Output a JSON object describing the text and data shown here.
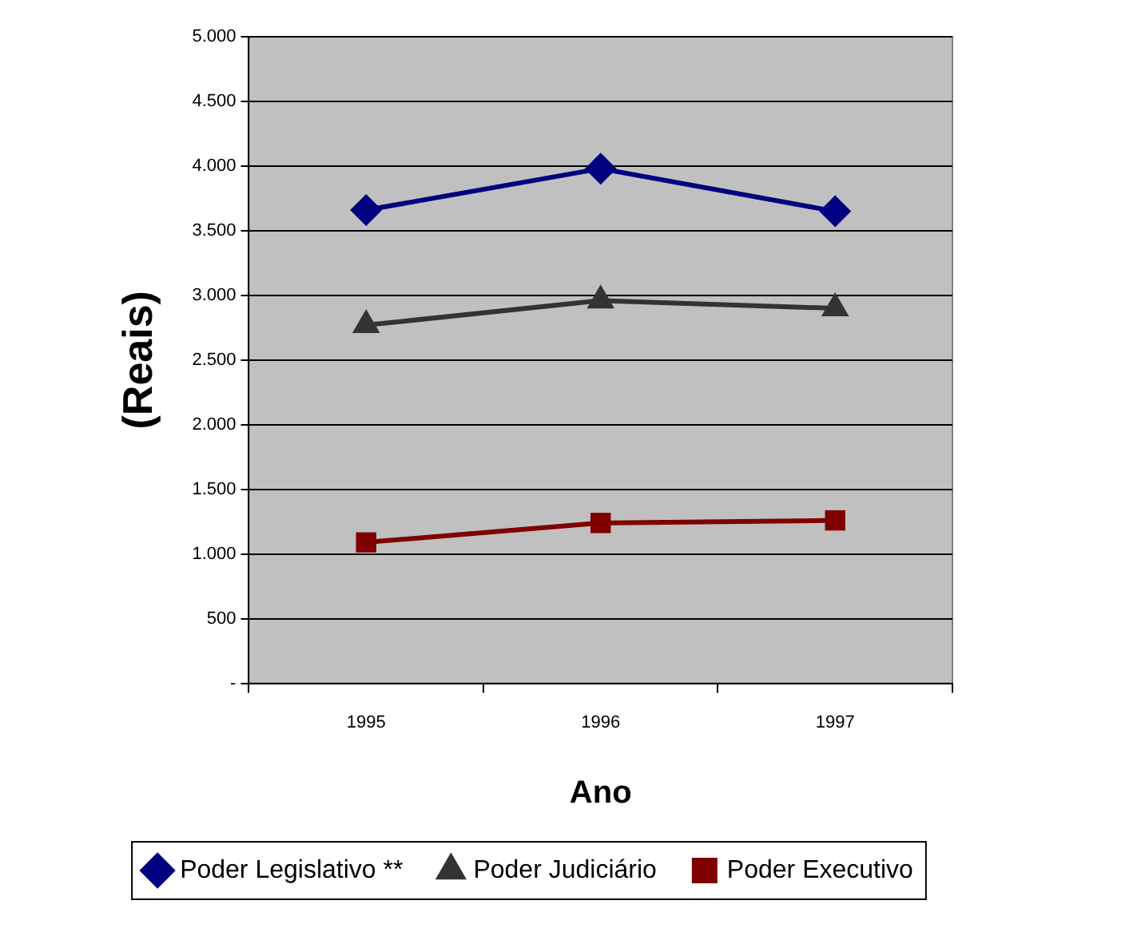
{
  "chart_data": {
    "type": "line",
    "xlabel": "Ano",
    "ylabel": "(Reais)",
    "categories": [
      "1995",
      "1996",
      "1997"
    ],
    "series": [
      {
        "name": "Poder Legislativo **",
        "color": "#000080",
        "marker": "diamond",
        "values": [
          3660,
          3980,
          3650
        ]
      },
      {
        "name": "Poder Judiciário",
        "color": "#333333",
        "marker": "triangle",
        "values": [
          2770,
          2960,
          2900
        ]
      },
      {
        "name": "Poder Executivo",
        "color": "#800000",
        "marker": "square",
        "values": [
          1090,
          1240,
          1260
        ]
      }
    ],
    "ylim": [
      0,
      5000
    ],
    "yticks": [
      {
        "value": 0,
        "label": "-"
      },
      {
        "value": 500,
        "label": "500"
      },
      {
        "value": 1000,
        "label": "1.000"
      },
      {
        "value": 1500,
        "label": "1.500"
      },
      {
        "value": 2000,
        "label": "2.000"
      },
      {
        "value": 2500,
        "label": "2.500"
      },
      {
        "value": 3000,
        "label": "3.000"
      },
      {
        "value": 3500,
        "label": "3.500"
      },
      {
        "value": 4000,
        "label": "4.000"
      },
      {
        "value": 4500,
        "label": "4.500"
      },
      {
        "value": 5000,
        "label": "5.000"
      }
    ],
    "grid": "y",
    "legend": "bottom",
    "line_style": "solid"
  }
}
